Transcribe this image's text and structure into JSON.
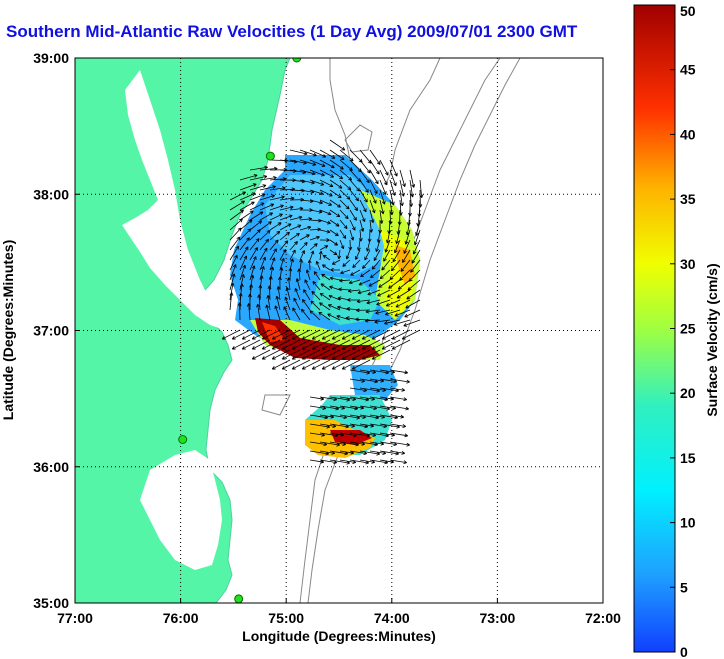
{
  "title": "Southern Mid-Atlantic Raw Velocities (1 Day Avg) 2009/07/01 2300 GMT",
  "map": {
    "xlabel": "Longitude (Degrees:Minutes)",
    "ylabel": "Latitude (Degrees:Minutes)",
    "lon_range": [
      -77,
      -72
    ],
    "lat_range": [
      35,
      39
    ],
    "lon_ticks": [
      "77:00",
      "76:00",
      "75:00",
      "74:00",
      "73:00",
      "72:00"
    ],
    "lat_ticks": [
      "35:00",
      "36:00",
      "37:00",
      "38:00",
      "39:00"
    ],
    "grid": "dotted",
    "land_color": "#55f5a8",
    "ocean_color": "#ffffff",
    "bathymetry_color": "#888888"
  },
  "colorbar": {
    "label": "Surface Velocity (cm/s)",
    "min": 0,
    "max": 50,
    "ticks": [
      "0",
      "5",
      "10",
      "15",
      "20",
      "25",
      "30",
      "35",
      "40",
      "45",
      "50"
    ],
    "colormap": "jet"
  },
  "stations": [
    {
      "lon": -74.9,
      "lat": 39.0
    },
    {
      "lon": -75.15,
      "lat": 38.28
    },
    {
      "lon": -75.98,
      "lat": 36.2
    },
    {
      "lon": -75.45,
      "lat": 35.03
    }
  ]
}
